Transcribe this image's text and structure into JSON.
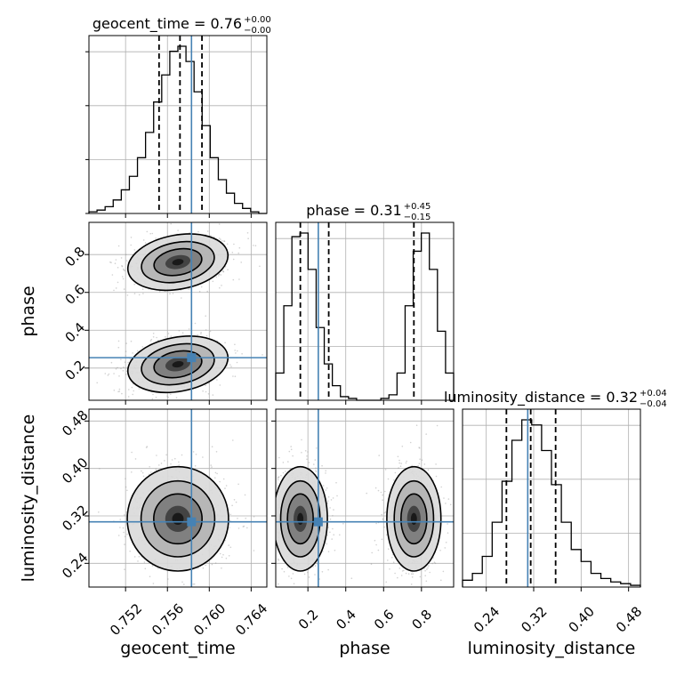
{
  "chart_data": {
    "type": "corner",
    "parameters": [
      {
        "name": "geocent_time",
        "title_value": "0.76",
        "title_plus": "+0.00",
        "title_minus": "−0.00",
        "range": [
          0.7485,
          0.7655
        ],
        "truth": 0.7583,
        "quantiles": [
          0.7552,
          0.7572,
          0.7593
        ],
        "ticks": [
          0.752,
          0.756,
          0.76,
          0.764
        ],
        "tick_labels": [
          "0.752",
          "0.756",
          "0.760",
          "0.764"
        ],
        "histogram": [
          1,
          2,
          4,
          8,
          14,
          22,
          33,
          48,
          66,
          82,
          96,
          99,
          90,
          72,
          52,
          33,
          20,
          12,
          6,
          3,
          1,
          0
        ]
      },
      {
        "name": "phase",
        "title_value": "0.31",
        "title_plus": "+0.45",
        "title_minus": "−0.15",
        "range": [
          0.03,
          0.97
        ],
        "truth": 0.255,
        "quantiles": [
          0.16,
          0.31,
          0.76
        ],
        "ticks": [
          0.2,
          0.4,
          0.6,
          0.8
        ],
        "tick_labels": [
          "0.2",
          "0.4",
          "0.6",
          "0.8"
        ],
        "histogram": [
          15,
          52,
          90,
          92,
          72,
          40,
          20,
          8,
          2,
          1,
          0,
          0,
          0,
          1,
          3,
          15,
          52,
          82,
          92,
          72,
          38,
          15
        ]
      },
      {
        "name": "luminosity_distance",
        "title_value": "0.32",
        "title_plus": "+0.04",
        "title_minus": "−0.04",
        "range": [
          0.2,
          0.5
        ],
        "truth": 0.31,
        "quantiles": [
          0.274,
          0.315,
          0.357
        ],
        "ticks": [
          0.24,
          0.32,
          0.4,
          0.48
        ],
        "tick_labels": [
          "0.24",
          "0.32",
          "0.40",
          "0.48"
        ],
        "histogram": [
          4,
          8,
          18,
          38,
          62,
          86,
          98,
          95,
          80,
          60,
          38,
          22,
          15,
          8,
          5,
          3,
          2,
          1
        ]
      }
    ],
    "histogram_ticks_diagonal_0": [
      0,
      1,
      2,
      3
    ],
    "blobs": {
      "1-0": [
        {
          "x": 0.757,
          "y": 0.76,
          "sx": 0.0022,
          "sy": 0.065,
          "rho": -0.35,
          "w": 1.0
        },
        {
          "x": 0.757,
          "y": 0.22,
          "sx": 0.0022,
          "sy": 0.065,
          "rho": -0.35,
          "w": 1.0
        }
      ],
      "2-0": [
        {
          "x": 0.757,
          "y": 0.315,
          "sx": 0.0022,
          "sy": 0.04,
          "rho": 0,
          "w": 1.0
        }
      ],
      "2-1": [
        {
          "x": 0.16,
          "y": 0.315,
          "sx": 0.065,
          "sy": 0.04,
          "rho": 0,
          "w": 1.0
        },
        {
          "x": 0.76,
          "y": 0.315,
          "sx": 0.065,
          "sy": 0.04,
          "rho": 0,
          "w": 1.0
        }
      ]
    },
    "colors": {
      "truth": "#4682b4",
      "hist": "#000000",
      "grid": "#b0b0b0",
      "contour": "#000000"
    },
    "grid": true
  }
}
